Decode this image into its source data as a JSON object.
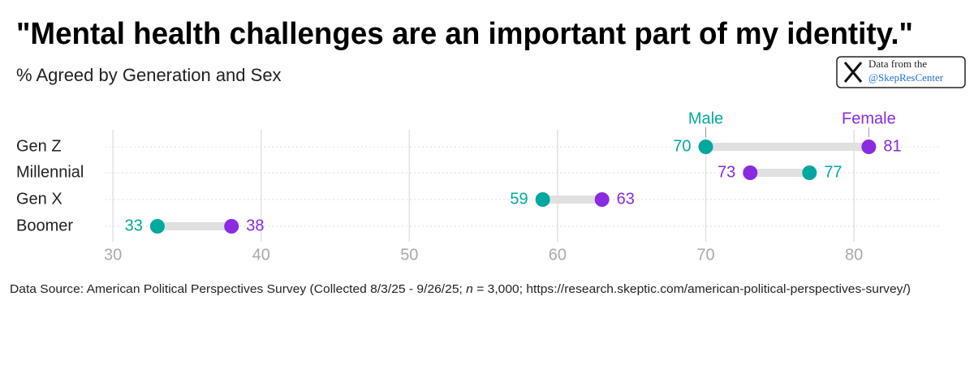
{
  "chart_data": {
    "type": "dumbbell",
    "title": "\"Mental health challenges are an important part of my identity.\"",
    "subtitle": "% Agreed by Generation and Sex",
    "categories": [
      "Gen Z",
      "Millennial",
      "Gen X",
      "Boomer"
    ],
    "series": [
      {
        "name": "Male",
        "color": "#00a8a0",
        "values": [
          70,
          77,
          59,
          33
        ]
      },
      {
        "name": "Female",
        "color": "#8a2be2",
        "values": [
          81,
          73,
          63,
          38
        ]
      }
    ],
    "xlim": [
      29.5,
      85.8
    ],
    "xticks": [
      30,
      40,
      50,
      60,
      70,
      80
    ],
    "grid": true,
    "source": [
      "Data Source: American Political Perspectives Survey (Collected 8/3/25 - 9/26/25; ",
      "n",
      " = 3,000; https://research.skeptic.com/american-political-perspectives-survey/)"
    ]
  },
  "badge": {
    "line1": "Data from the",
    "line2": "@SkepResCenter"
  }
}
